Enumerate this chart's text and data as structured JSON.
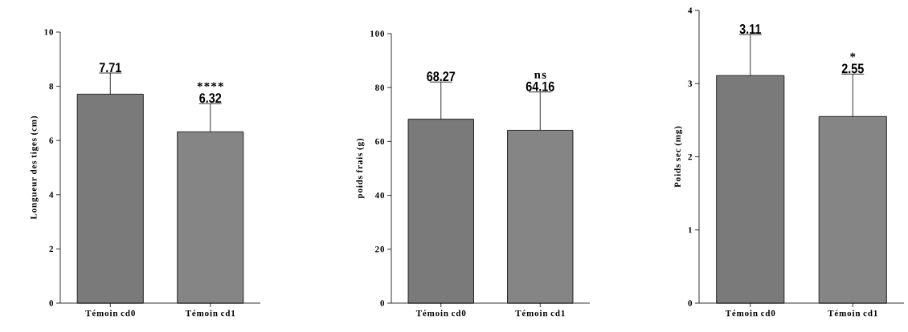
{
  "chart_data": [
    {
      "type": "bar",
      "ylabel": "Longueur des tiges (cm)",
      "categories": [
        "Témoin cd0",
        "Témoin cd1"
      ],
      "values": [
        7.71,
        6.32
      ],
      "errors": [
        0.78,
        1.04
      ],
      "colors": [
        "#7a7a7a",
        "#858585"
      ],
      "value_labels": [
        "7.71",
        "6.32"
      ],
      "ylim": [
        0,
        10
      ],
      "yticks": [
        0,
        2,
        4,
        6,
        8,
        10
      ],
      "annotations": [
        "****"
      ]
    },
    {
      "type": "bar",
      "ylabel": "poids frais (g)",
      "categories": [
        "Témoin cd0",
        "Témoin cd1"
      ],
      "values": [
        68.27,
        64.16
      ],
      "errors": [
        13.8,
        14.2
      ],
      "colors": [
        "#7a7a7a",
        "#858585"
      ],
      "value_labels": [
        "68.27",
        "64.16"
      ],
      "ylim": [
        0,
        100
      ],
      "yticks": [
        0,
        20,
        40,
        60,
        80,
        100
      ],
      "annotations": [
        "ns"
      ]
    },
    {
      "type": "bar",
      "ylabel": "Poids sec (mg)",
      "categories": [
        "Témoin cd0",
        "Témoin cd1"
      ],
      "values": [
        3.11,
        2.55
      ],
      "errors": [
        0.56,
        0.58
      ],
      "colors": [
        "#7a7a7a",
        "#858585"
      ],
      "value_labels": [
        "3.11",
        "2.55"
      ],
      "ylim": [
        0,
        4
      ],
      "yticks": [
        0,
        1,
        2,
        3,
        4
      ],
      "annotations": [
        "*"
      ]
    }
  ]
}
